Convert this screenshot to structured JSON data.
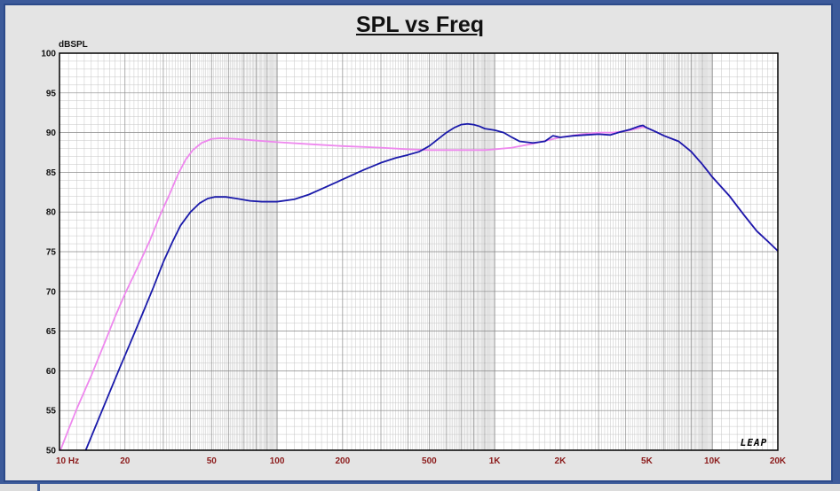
{
  "chart_data": {
    "type": "line",
    "title": "SPL vs Freq",
    "ylabel": "dBSPL",
    "xlabel": "",
    "xscale": "log",
    "xlim": [
      10,
      20000
    ],
    "ylim": [
      50,
      100
    ],
    "grid": true,
    "x_ticks": [
      {
        "value": 10,
        "label": "10 Hz"
      },
      {
        "value": 20,
        "label": "20"
      },
      {
        "value": 50,
        "label": "50"
      },
      {
        "value": 100,
        "label": "100"
      },
      {
        "value": 200,
        "label": "200"
      },
      {
        "value": 500,
        "label": "500"
      },
      {
        "value": 1000,
        "label": "1K"
      },
      {
        "value": 2000,
        "label": "2K"
      },
      {
        "value": 5000,
        "label": "5K"
      },
      {
        "value": 10000,
        "label": "10K"
      },
      {
        "value": 20000,
        "label": "20K"
      }
    ],
    "y_ticks": [
      100,
      95,
      90,
      85,
      80,
      75,
      70,
      65,
      60,
      55,
      50
    ],
    "watermark": "LEAP",
    "series": [
      {
        "color": "#ee88ee",
        "points": [
          [
            10.1,
            50
          ],
          [
            11,
            52.6
          ],
          [
            12,
            55.2
          ],
          [
            14,
            59.4
          ],
          [
            16,
            63.3
          ],
          [
            18,
            66.8
          ],
          [
            20,
            69.7
          ],
          [
            23,
            73.2
          ],
          [
            26,
            76.4
          ],
          [
            29,
            79.6
          ],
          [
            32,
            82.2
          ],
          [
            35,
            84.7
          ],
          [
            38,
            86.6
          ],
          [
            41,
            87.8
          ],
          [
            45,
            88.7
          ],
          [
            50,
            89.2
          ],
          [
            55,
            89.3
          ],
          [
            65,
            89.2
          ],
          [
            80,
            89
          ],
          [
            100,
            88.8
          ],
          [
            150,
            88.5
          ],
          [
            200,
            88.3
          ],
          [
            300,
            88.1
          ],
          [
            400,
            87.9
          ],
          [
            500,
            87.8
          ],
          [
            600,
            87.8
          ],
          [
            700,
            87.8
          ],
          [
            900,
            87.8
          ],
          [
            1000,
            87.9
          ],
          [
            1200,
            88.1
          ],
          [
            1500,
            88.6
          ],
          [
            1800,
            89.1
          ],
          [
            2000,
            89.4
          ],
          [
            2500,
            89.8
          ],
          [
            3000,
            90
          ],
          [
            3500,
            90
          ],
          [
            4000,
            90.2
          ],
          [
            4500,
            90.5
          ],
          [
            4800,
            90.7
          ],
          [
            5000,
            90.6
          ],
          [
            5500,
            90.1
          ],
          [
            6000,
            89.6
          ],
          [
            7000,
            88.9
          ],
          [
            8000,
            87.6
          ],
          [
            9000,
            86
          ],
          [
            10000,
            84.4
          ],
          [
            12000,
            82
          ],
          [
            14000,
            79.6
          ],
          [
            16000,
            77.6
          ],
          [
            18000,
            76.3
          ],
          [
            20000,
            75.1
          ]
        ]
      },
      {
        "color": "#1a1aaa",
        "points": [
          [
            13.2,
            50
          ],
          [
            15,
            53.7
          ],
          [
            17,
            57.3
          ],
          [
            19,
            60.5
          ],
          [
            21,
            63.3
          ],
          [
            24,
            67.1
          ],
          [
            27,
            70.5
          ],
          [
            30,
            73.7
          ],
          [
            33,
            76.2
          ],
          [
            36,
            78.3
          ],
          [
            40,
            80
          ],
          [
            44,
            81.1
          ],
          [
            48,
            81.7
          ],
          [
            52,
            81.9
          ],
          [
            58,
            81.9
          ],
          [
            65,
            81.7
          ],
          [
            75,
            81.4
          ],
          [
            85,
            81.3
          ],
          [
            100,
            81.3
          ],
          [
            120,
            81.6
          ],
          [
            140,
            82.2
          ],
          [
            160,
            82.9
          ],
          [
            200,
            84.1
          ],
          [
            250,
            85.3
          ],
          [
            300,
            86.2
          ],
          [
            350,
            86.8
          ],
          [
            400,
            87.2
          ],
          [
            450,
            87.6
          ],
          [
            500,
            88.3
          ],
          [
            550,
            89.2
          ],
          [
            600,
            90
          ],
          [
            650,
            90.6
          ],
          [
            700,
            91
          ],
          [
            750,
            91.1
          ],
          [
            800,
            91
          ],
          [
            850,
            90.8
          ],
          [
            900,
            90.5
          ],
          [
            1000,
            90.3
          ],
          [
            1100,
            90
          ],
          [
            1200,
            89.4
          ],
          [
            1300,
            88.9
          ],
          [
            1500,
            88.7
          ],
          [
            1700,
            88.9
          ],
          [
            1850,
            89.6
          ],
          [
            2000,
            89.4
          ],
          [
            2300,
            89.6
          ],
          [
            2600,
            89.7
          ],
          [
            3000,
            89.8
          ],
          [
            3400,
            89.7
          ],
          [
            3800,
            90.1
          ],
          [
            4200,
            90.4
          ],
          [
            4600,
            90.8
          ],
          [
            4800,
            90.9
          ],
          [
            5000,
            90.6
          ],
          [
            5500,
            90.1
          ],
          [
            6000,
            89.6
          ],
          [
            7000,
            88.9
          ],
          [
            8000,
            87.6
          ],
          [
            9000,
            86
          ],
          [
            10000,
            84.4
          ],
          [
            12000,
            82
          ],
          [
            14000,
            79.6
          ],
          [
            16000,
            77.6
          ],
          [
            18000,
            76.3
          ],
          [
            20000,
            75.1
          ]
        ]
      }
    ]
  }
}
